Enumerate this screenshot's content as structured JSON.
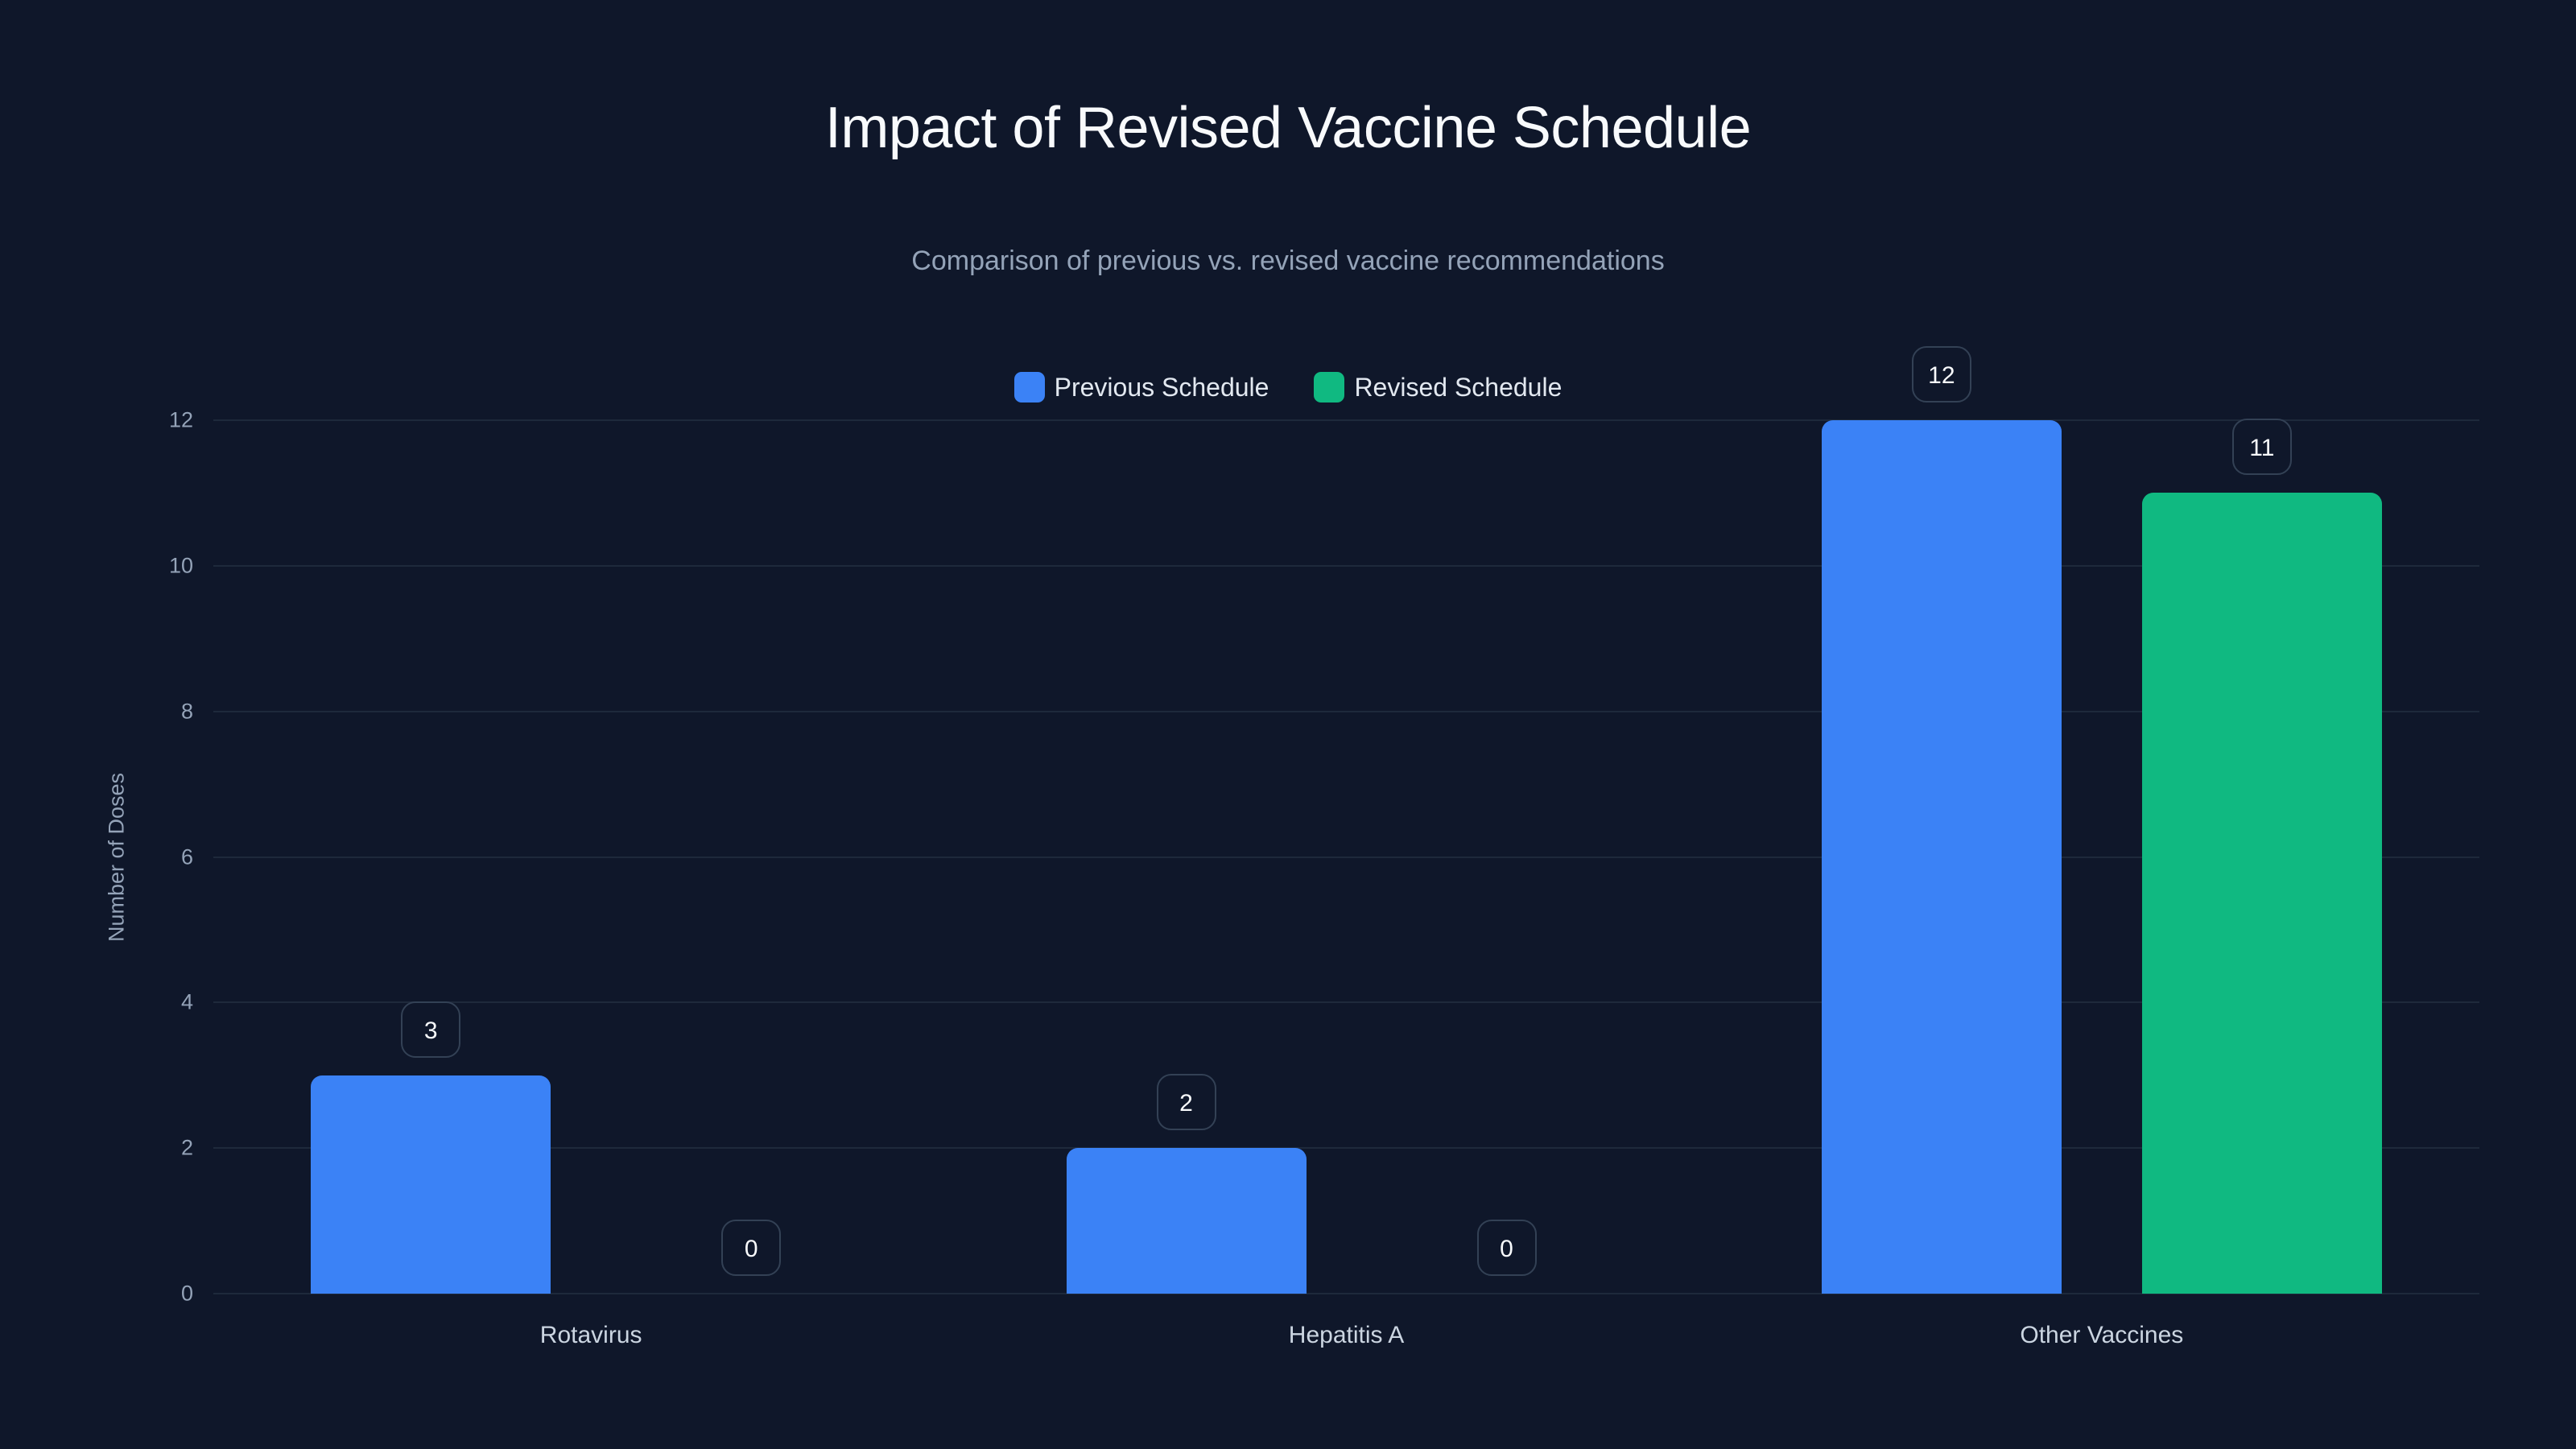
{
  "header": {
    "title": "Impact of Revised Vaccine Schedule",
    "subtitle": "Comparison of previous vs. revised vaccine recommendations"
  },
  "legend": [
    {
      "label": "Previous Schedule",
      "color": "#3b82f6"
    },
    {
      "label": "Revised Schedule",
      "color": "#10b981"
    }
  ],
  "axes": {
    "ylabel": "Number of Doses",
    "yticks": [
      "0",
      "2",
      "4",
      "6",
      "8",
      "10",
      "12"
    ],
    "xticks": [
      "Rotavirus",
      "Hepatitis A",
      "Other Vaccines"
    ]
  },
  "chart_data": {
    "type": "bar",
    "title": "Impact of Revised Vaccine Schedule",
    "subtitle": "Comparison of previous vs. revised vaccine recommendations",
    "categories": [
      "Rotavirus",
      "Hepatitis A",
      "Other Vaccines"
    ],
    "series": [
      {
        "name": "Previous Schedule",
        "color": "#3b82f6",
        "values": [
          3,
          2,
          12
        ]
      },
      {
        "name": "Revised Schedule",
        "color": "#10b981",
        "values": [
          0,
          0,
          11
        ]
      }
    ],
    "xlabel": "",
    "ylabel": "Number of Doses",
    "ylim": [
      0,
      12
    ],
    "yticks": [
      0,
      2,
      4,
      6,
      8,
      10,
      12
    ],
    "grid": true,
    "legend_position": "top-center",
    "data_labels": true
  }
}
